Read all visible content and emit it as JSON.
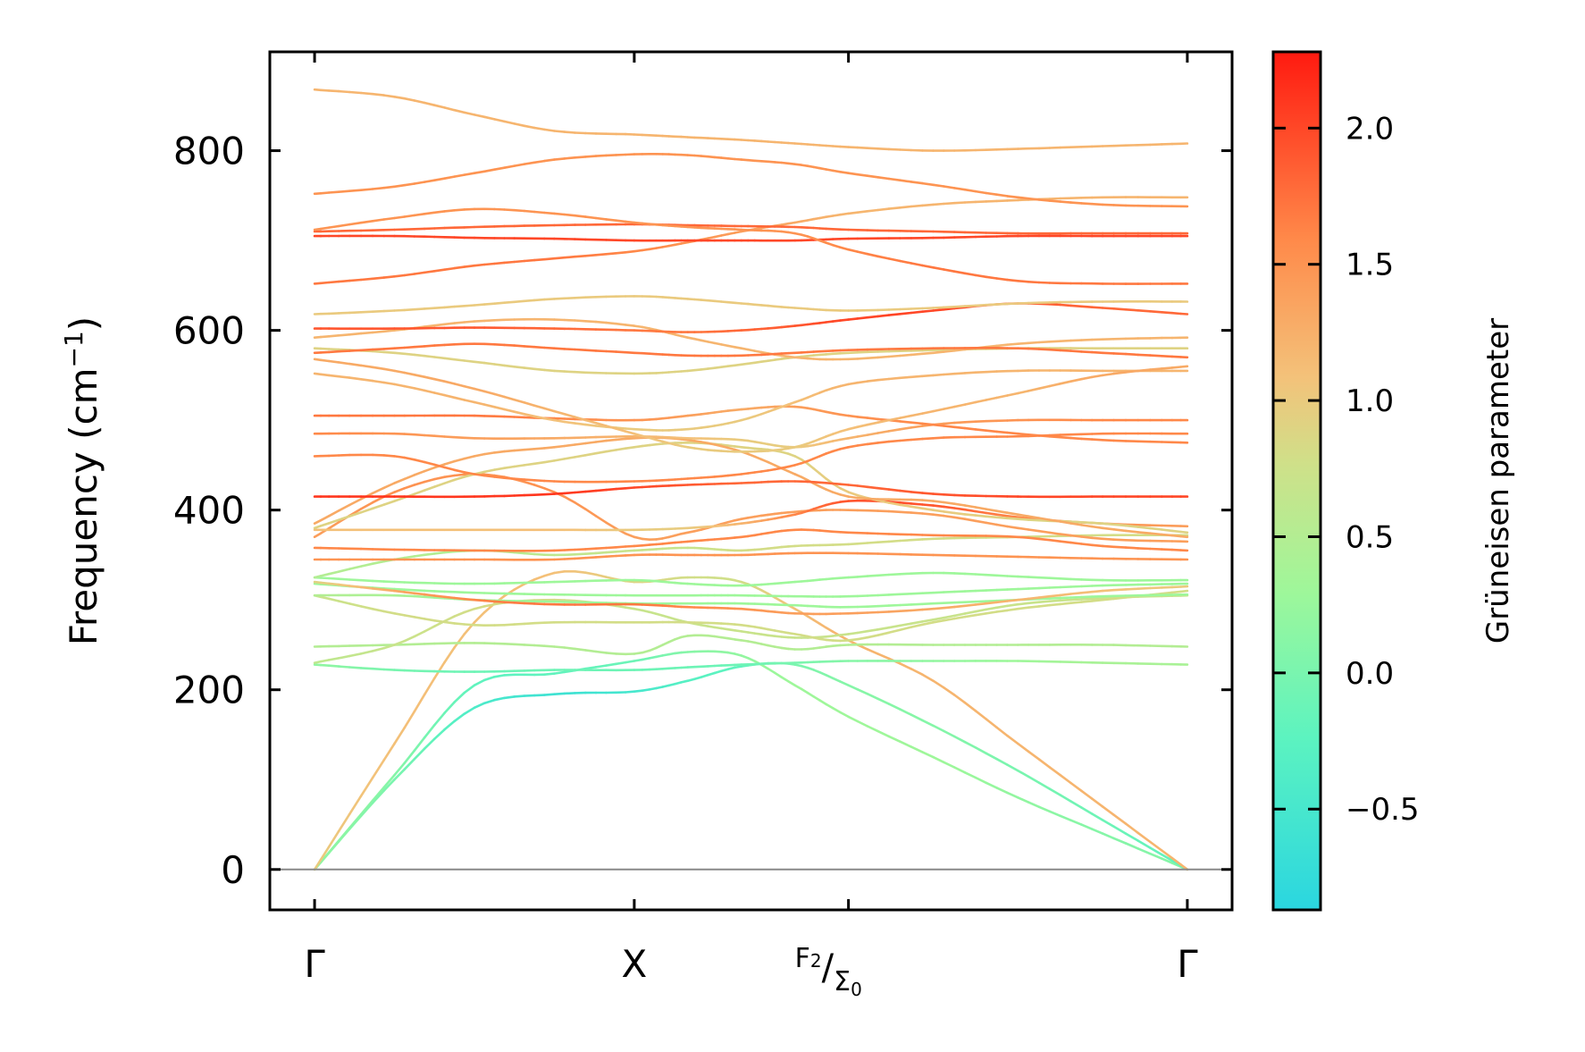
{
  "chart_data": {
    "type": "line",
    "title": "",
    "xlabel": "",
    "ylabel": "Frequency (cm",
    "ylabel_unit_sup": "−1",
    "ylabel_close": ")",
    "ylim": [
      -45,
      910
    ],
    "yticks": [
      "0",
      "200",
      "400",
      "600",
      "800"
    ],
    "xticks": [
      {
        "label": "Γ",
        "pos": 0
      },
      {
        "label": "X",
        "pos": 1
      },
      {
        "label_main": "F",
        "label_sub1": "2",
        "label_slash": "/",
        "label_main2": "Σ",
        "label_sub2": "0",
        "pos": 1.67
      },
      {
        "label": "Γ",
        "pos": 2.73
      }
    ],
    "xlim": [
      -0.14,
      2.87
    ],
    "grid": false,
    "legend": "none",
    "colorbar": {
      "label": "Grüneisen parameter",
      "range": [
        -0.87,
        2.28
      ],
      "ticks": [
        "−0.5",
        "0.0",
        "0.5",
        "1.0",
        "1.5",
        "2.0"
      ],
      "tick_values": [
        -0.5,
        0.0,
        0.5,
        1.0,
        1.5,
        2.0
      ],
      "colormap": "rainbow-upper"
    },
    "branches": [
      {
        "y": [
          0,
          105,
          205,
          218,
          232,
          242,
          238,
          205,
          170,
          125,
          80,
          40,
          0
        ],
        "g": [
          0.2,
          0.1,
          -0.2,
          -0.2,
          -0.1,
          0.1,
          0.2,
          0.3,
          0.3,
          0.3,
          0.2,
          0.1,
          0.1
        ]
      },
      {
        "y": [
          0,
          100,
          180,
          195,
          198,
          210,
          226,
          228,
          205,
          160,
          110,
          55,
          0
        ],
        "g": [
          0.2,
          0.0,
          -0.4,
          -0.6,
          -0.5,
          -0.3,
          -0.2,
          0.0,
          0.1,
          0.1,
          0.0,
          -0.1,
          -0.2
        ]
      },
      {
        "y": [
          0,
          140,
          275,
          330,
          320,
          325,
          320,
          290,
          255,
          210,
          140,
          70,
          0
        ],
        "g": [
          1.0,
          1.1,
          1.1,
          1.1,
          0.9,
          0.8,
          0.8,
          1.1,
          1.2,
          1.2,
          1.2,
          1.2,
          1.2
        ]
      },
      {
        "y": [
          228,
          222,
          220,
          222,
          222,
          225,
          228,
          230,
          232,
          232,
          232,
          230,
          228
        ],
        "g": [
          0.2,
          0.0,
          -0.1,
          -0.1,
          -0.1,
          -0.1,
          -0.1,
          0.0,
          0.1,
          0.2,
          0.3,
          0.4,
          0.4
        ]
      },
      {
        "y": [
          248,
          250,
          252,
          248,
          240,
          260,
          255,
          245,
          250,
          250,
          250,
          250,
          248
        ],
        "g": [
          0.5,
          0.5,
          0.5,
          0.5,
          0.5,
          0.5,
          0.5,
          0.5,
          0.5,
          0.5,
          0.5,
          0.5,
          0.5
        ]
      },
      {
        "y": [
          230,
          250,
          290,
          300,
          290,
          275,
          265,
          258,
          262,
          278,
          295,
          302,
          305
        ],
        "g": [
          0.6,
          0.7,
          0.8,
          0.8,
          0.7,
          0.7,
          0.7,
          0.7,
          0.7,
          0.7,
          0.7,
          0.7,
          0.7
        ]
      },
      {
        "y": [
          305,
          285,
          272,
          275,
          275,
          275,
          272,
          262,
          255,
          275,
          290,
          300,
          310
        ],
        "g": [
          0.7,
          0.8,
          0.8,
          0.8,
          0.8,
          0.8,
          0.8,
          0.8,
          0.8,
          0.8,
          0.8,
          0.8,
          0.8
        ]
      },
      {
        "y": [
          305,
          305,
          300,
          298,
          296,
          296,
          296,
          294,
          292,
          296,
          300,
          304,
          306
        ],
        "g": [
          0.5,
          0.4,
          0.3,
          0.3,
          0.3,
          0.3,
          0.3,
          0.3,
          0.3,
          0.3,
          0.3,
          0.3,
          0.3
        ]
      },
      {
        "y": [
          318,
          312,
          308,
          306,
          305,
          305,
          305,
          304,
          304,
          308,
          312,
          316,
          318
        ],
        "g": [
          0.3,
          0.3,
          0.3,
          0.3,
          0.3,
          0.3,
          0.3,
          0.3,
          0.3,
          0.3,
          0.3,
          0.3,
          0.3
        ]
      },
      {
        "y": [
          325,
          320,
          318,
          320,
          322,
          318,
          316,
          320,
          325,
          330,
          326,
          322,
          322
        ],
        "g": [
          0.3,
          0.3,
          0.3,
          0.3,
          0.3,
          0.3,
          0.3,
          0.3,
          0.3,
          0.3,
          0.3,
          0.3,
          0.3
        ]
      },
      {
        "y": [
          320,
          310,
          300,
          295,
          295,
          292,
          290,
          285,
          285,
          290,
          300,
          310,
          315
        ],
        "g": [
          0.9,
          1.3,
          1.6,
          1.7,
          1.7,
          1.6,
          1.5,
          1.4,
          1.4,
          1.3,
          1.2,
          1.1,
          1.0
        ]
      },
      {
        "y": [
          325,
          345,
          355,
          350,
          355,
          358,
          355,
          360,
          362,
          368,
          370,
          372,
          372
        ],
        "g": [
          0.5,
          0.5,
          0.5,
          0.6,
          0.7,
          0.7,
          0.8,
          0.8,
          0.8,
          0.8,
          0.8,
          0.8,
          0.8
        ]
      },
      {
        "y": [
          345,
          345,
          345,
          345,
          350,
          350,
          350,
          352,
          352,
          350,
          348,
          346,
          345
        ],
        "g": [
          1.5,
          1.5,
          1.5,
          1.5,
          1.5,
          1.5,
          1.5,
          1.5,
          1.5,
          1.5,
          1.5,
          1.5,
          1.5
        ]
      },
      {
        "y": [
          358,
          356,
          355,
          355,
          360,
          365,
          370,
          378,
          375,
          372,
          370,
          360,
          355
        ],
        "g": [
          1.6,
          1.6,
          1.6,
          1.6,
          1.6,
          1.6,
          1.6,
          1.6,
          1.6,
          1.6,
          1.6,
          1.6,
          1.6
        ]
      },
      {
        "y": [
          370,
          420,
          440,
          420,
          370,
          375,
          390,
          398,
          400,
          395,
          380,
          368,
          365
        ],
        "g": [
          1.4,
          1.5,
          1.5,
          1.5,
          1.4,
          1.4,
          1.4,
          1.4,
          1.4,
          1.4,
          1.4,
          1.4,
          1.4
        ]
      },
      {
        "y": [
          378,
          378,
          378,
          378,
          378,
          380,
          385,
          395,
          410,
          405,
          392,
          385,
          382
        ],
        "g": [
          1.1,
          1.1,
          1.1,
          1.1,
          1.0,
          1.0,
          1.2,
          1.6,
          1.9,
          1.9,
          1.6,
          1.5,
          1.4
        ]
      },
      {
        "y": [
          380,
          410,
          440,
          455,
          470,
          475,
          470,
          460,
          420,
          400,
          390,
          385,
          375
        ],
        "g": [
          0.9,
          0.9,
          0.9,
          0.9,
          0.9,
          0.9,
          0.9,
          0.9,
          1.0,
          1.0,
          0.9,
          0.9,
          0.9
        ]
      },
      {
        "y": [
          385,
          430,
          460,
          470,
          480,
          478,
          465,
          440,
          415,
          410,
          395,
          380,
          370
        ],
        "g": [
          1.3,
          1.3,
          1.3,
          1.3,
          1.3,
          1.3,
          1.3,
          1.3,
          1.3,
          1.3,
          1.3,
          1.3,
          1.3
        ]
      },
      {
        "y": [
          415,
          415,
          415,
          418,
          425,
          428,
          430,
          432,
          428,
          418,
          415,
          415,
          415
        ],
        "g": [
          2.1,
          2.1,
          2.1,
          2.1,
          2.0,
          1.9,
          1.8,
          1.8,
          1.8,
          1.9,
          2.0,
          2.0,
          2.0
        ]
      },
      {
        "y": [
          460,
          460,
          440,
          432,
          432,
          435,
          440,
          450,
          470,
          480,
          482,
          485,
          485
        ],
        "g": [
          1.6,
          1.6,
          1.6,
          1.6,
          1.6,
          1.6,
          1.6,
          1.6,
          1.6,
          1.6,
          1.6,
          1.6,
          1.6
        ]
      },
      {
        "y": [
          485,
          485,
          480,
          480,
          482,
          480,
          478,
          470,
          480,
          495,
          500,
          500,
          500
        ],
        "g": [
          1.6,
          1.5,
          1.4,
          1.3,
          1.2,
          1.1,
          1.0,
          1.0,
          1.2,
          1.4,
          1.5,
          1.6,
          1.6
        ]
      },
      {
        "y": [
          505,
          505,
          505,
          502,
          500,
          505,
          512,
          515,
          505,
          495,
          485,
          478,
          475
        ],
        "g": [
          1.7,
          1.7,
          1.7,
          1.6,
          1.5,
          1.4,
          1.3,
          1.4,
          1.5,
          1.6,
          1.6,
          1.6,
          1.6
        ]
      },
      {
        "y": [
          552,
          540,
          520,
          500,
          490,
          490,
          500,
          520,
          540,
          550,
          555,
          555,
          555
        ],
        "g": [
          1.2,
          1.2,
          1.2,
          1.1,
          1.0,
          1.0,
          1.0,
          1.1,
          1.2,
          1.2,
          1.2,
          1.2,
          1.2
        ]
      },
      {
        "y": [
          568,
          555,
          535,
          510,
          485,
          470,
          465,
          470,
          490,
          510,
          530,
          550,
          560
        ],
        "g": [
          1.3,
          1.3,
          1.3,
          1.2,
          1.1,
          1.0,
          1.0,
          1.0,
          1.1,
          1.2,
          1.2,
          1.3,
          1.3
        ]
      },
      {
        "y": [
          580,
          575,
          565,
          555,
          552,
          555,
          562,
          570,
          575,
          578,
          580,
          580,
          580
        ],
        "g": [
          0.9,
          0.9,
          0.9,
          0.9,
          0.9,
          0.9,
          0.9,
          0.9,
          0.9,
          0.9,
          0.9,
          0.9,
          0.9
        ]
      },
      {
        "y": [
          592,
          600,
          610,
          612,
          605,
          592,
          580,
          570,
          568,
          575,
          585,
          590,
          592
        ],
        "g": [
          1.2,
          1.2,
          1.2,
          1.2,
          1.2,
          1.2,
          1.2,
          1.2,
          1.2,
          1.2,
          1.2,
          1.2,
          1.2
        ]
      },
      {
        "y": [
          602,
          602,
          603,
          602,
          600,
          598,
          600,
          605,
          612,
          622,
          630,
          625,
          618
        ],
        "g": [
          1.9,
          1.9,
          1.9,
          1.8,
          1.7,
          1.7,
          1.8,
          1.9,
          2.0,
          2.0,
          1.9,
          1.8,
          1.8
        ]
      },
      {
        "y": [
          618,
          622,
          628,
          635,
          638,
          635,
          630,
          625,
          622,
          625,
          630,
          632,
          632
        ],
        "g": [
          1.0,
          1.0,
          1.0,
          1.0,
          1.0,
          1.0,
          1.0,
          1.0,
          1.0,
          1.0,
          1.0,
          1.0,
          1.0
        ]
      },
      {
        "y": [
          575,
          580,
          585,
          580,
          575,
          572,
          572,
          575,
          578,
          580,
          580,
          575,
          570
        ],
        "g": [
          1.7,
          1.7,
          1.7,
          1.7,
          1.7,
          1.7,
          1.7,
          1.7,
          1.7,
          1.7,
          1.7,
          1.7,
          1.7
        ]
      },
      {
        "y": [
          652,
          660,
          672,
          680,
          688,
          698,
          710,
          720,
          730,
          740,
          745,
          748,
          748
        ],
        "g": [
          1.7,
          1.7,
          1.7,
          1.7,
          1.6,
          1.5,
          1.4,
          1.3,
          1.2,
          1.2,
          1.2,
          1.2,
          1.2
        ]
      },
      {
        "y": [
          705,
          705,
          703,
          702,
          700,
          700,
          700,
          700,
          702,
          703,
          705,
          705,
          705
        ],
        "g": [
          2.0,
          2.0,
          2.0,
          2.0,
          2.0,
          2.0,
          2.0,
          2.0,
          2.0,
          2.0,
          2.0,
          2.0,
          2.0
        ]
      },
      {
        "y": [
          710,
          712,
          715,
          717,
          718,
          717,
          716,
          715,
          712,
          710,
          708,
          708,
          708
        ],
        "g": [
          1.8,
          1.8,
          1.8,
          1.8,
          1.8,
          1.8,
          1.8,
          1.8,
          1.8,
          1.8,
          1.8,
          1.8,
          1.8
        ]
      },
      {
        "y": [
          712,
          725,
          735,
          730,
          720,
          715,
          712,
          708,
          690,
          670,
          655,
          652,
          652
        ],
        "g": [
          1.5,
          1.5,
          1.5,
          1.5,
          1.5,
          1.5,
          1.5,
          1.5,
          1.6,
          1.7,
          1.7,
          1.7,
          1.7
        ]
      },
      {
        "y": [
          752,
          760,
          775,
          790,
          796,
          795,
          790,
          785,
          775,
          762,
          748,
          740,
          738
        ],
        "g": [
          1.5,
          1.5,
          1.5,
          1.5,
          1.5,
          1.5,
          1.5,
          1.5,
          1.5,
          1.5,
          1.5,
          1.5,
          1.5
        ]
      },
      {
        "y": [
          868,
          860,
          840,
          822,
          818,
          815,
          812,
          808,
          804,
          800,
          802,
          805,
          808
        ],
        "g": [
          1.2,
          1.2,
          1.2,
          1.2,
          1.2,
          1.2,
          1.2,
          1.2,
          1.2,
          1.2,
          1.2,
          1.2,
          1.2
        ]
      }
    ]
  }
}
